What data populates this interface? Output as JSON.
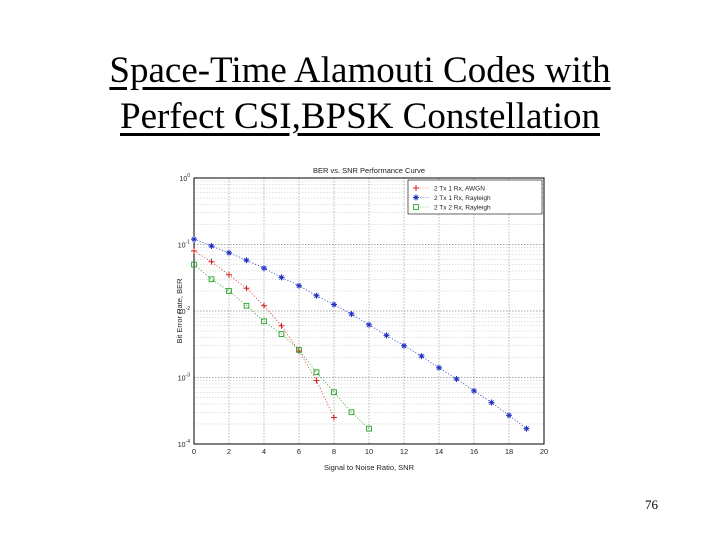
{
  "slide": {
    "title_line1": "Space-Time Alamouti Codes with",
    "title_line2": "Perfect CSI,BPSK Constellation",
    "page_number": "76"
  },
  "chart_data": {
    "type": "scatter",
    "title": "BER vs. SNR Performance Curve",
    "xlabel": "Signal to Noise Ratio, SNR",
    "ylabel": "Bit Error Rate, BER",
    "xlim": [
      0,
      20
    ],
    "ylim": [
      0.0001,
      1
    ],
    "yscale": "log",
    "grid": true,
    "legend_position": "top-right",
    "x_ticks": [
      "0",
      "2",
      "4",
      "6",
      "8",
      "10",
      "12",
      "14",
      "16",
      "18",
      "20"
    ],
    "y_ticks": [
      {
        "value": 1,
        "mantissa": "10",
        "exp": "0"
      },
      {
        "value": 0.1,
        "mantissa": "10",
        "exp": "-1"
      },
      {
        "value": 0.01,
        "mantissa": "10",
        "exp": "-2"
      },
      {
        "value": 0.001,
        "mantissa": "10",
        "exp": "-3"
      },
      {
        "value": 0.0001,
        "mantissa": "10",
        "exp": "-4"
      }
    ],
    "series": [
      {
        "name": "2 Tx 1 Rx, AWGN",
        "marker": "plus",
        "color": "#d42020",
        "x": [
          0,
          1,
          2,
          3,
          4,
          5,
          6,
          7,
          8
        ],
        "y": [
          0.08,
          0.055,
          0.035,
          0.022,
          0.012,
          0.006,
          0.0025,
          0.0009,
          0.00025
        ]
      },
      {
        "name": "2 Tx 1 Rx, Rayleigh",
        "marker": "star",
        "color": "#2030c0",
        "x": [
          0,
          1,
          2,
          3,
          4,
          5,
          6,
          7,
          8,
          9,
          10,
          11,
          12,
          13,
          14,
          15,
          16,
          17,
          18,
          19
        ],
        "y": [
          0.12,
          0.095,
          0.075,
          0.058,
          0.044,
          0.032,
          0.024,
          0.017,
          0.0125,
          0.009,
          0.0062,
          0.0043,
          0.003,
          0.0021,
          0.0014,
          0.00095,
          0.00063,
          0.00042,
          0.00027,
          0.00017
        ]
      },
      {
        "name": "2 Tx 2 Rx, Rayleigh",
        "marker": "square",
        "color": "#20a020",
        "x": [
          0,
          1,
          2,
          3,
          4,
          5,
          6,
          7,
          8,
          9,
          10
        ],
        "y": [
          0.05,
          0.03,
          0.02,
          0.012,
          0.007,
          0.0045,
          0.0026,
          0.0012,
          0.0006,
          0.0003,
          0.00017
        ]
      }
    ]
  }
}
